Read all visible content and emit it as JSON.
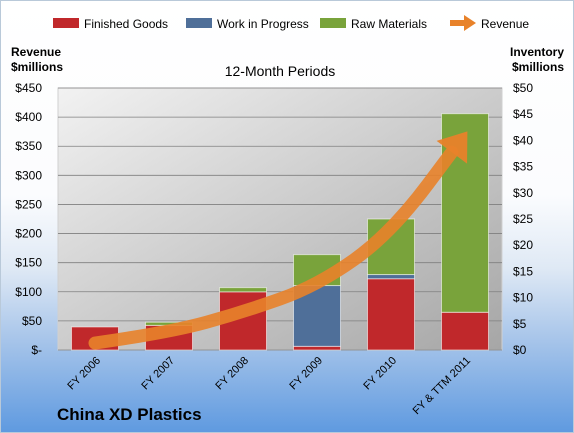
{
  "company_name": "China XD Plastics",
  "chart_data": {
    "type": "bar",
    "subtitle": "12-Month Periods",
    "categories": [
      "FY 2006",
      "FY 2007",
      "FY 2008",
      "FY 2009",
      "FY 2010",
      "FY & TTM 2011"
    ],
    "left_axis": {
      "label_line1": "Revenue",
      "label_line2": "$millions",
      "ylim": [
        0,
        450
      ],
      "ticks": [
        0,
        50,
        100,
        150,
        200,
        250,
        300,
        350,
        400,
        450
      ],
      "tick_labels": [
        "$-",
        "$50",
        "$100",
        "$150",
        "$200",
        "$250",
        "$300",
        "$350",
        "$400",
        "$450"
      ]
    },
    "right_axis": {
      "label_line1": "Inventory",
      "label_line2": "$millions",
      "ylim": [
        0,
        50
      ],
      "ticks": [
        0,
        5,
        10,
        15,
        20,
        25,
        30,
        35,
        40,
        45,
        50
      ],
      "tick_labels": [
        "$0",
        "$5",
        "$10",
        "$15",
        "$20",
        "$25",
        "$30",
        "$35",
        "$40",
        "$45",
        "$50"
      ]
    },
    "series": [
      {
        "name": "Finished Goods",
        "kind": "stacked-bar",
        "axis": "right",
        "color": "#c0282b",
        "values": [
          4.4,
          4.7,
          11.1,
          0.7,
          13.6,
          7.2
        ]
      },
      {
        "name": "Work in Progress",
        "kind": "stacked-bar",
        "axis": "right",
        "color": "#4f6f99",
        "values": [
          0,
          0,
          0,
          11.6,
          0.8,
          0
        ]
      },
      {
        "name": "Raw Materials",
        "kind": "stacked-bar",
        "axis": "right",
        "color": "#79a33b",
        "values": [
          0,
          0.6,
          0.8,
          5.9,
          10.6,
          37.9
        ]
      },
      {
        "name": "Revenue",
        "kind": "line-arrow",
        "axis": "left",
        "color": "#e8822a",
        "values": [
          12,
          30,
          65,
          110,
          200,
          370
        ]
      }
    ],
    "grid": true,
    "legend_position": "top"
  }
}
